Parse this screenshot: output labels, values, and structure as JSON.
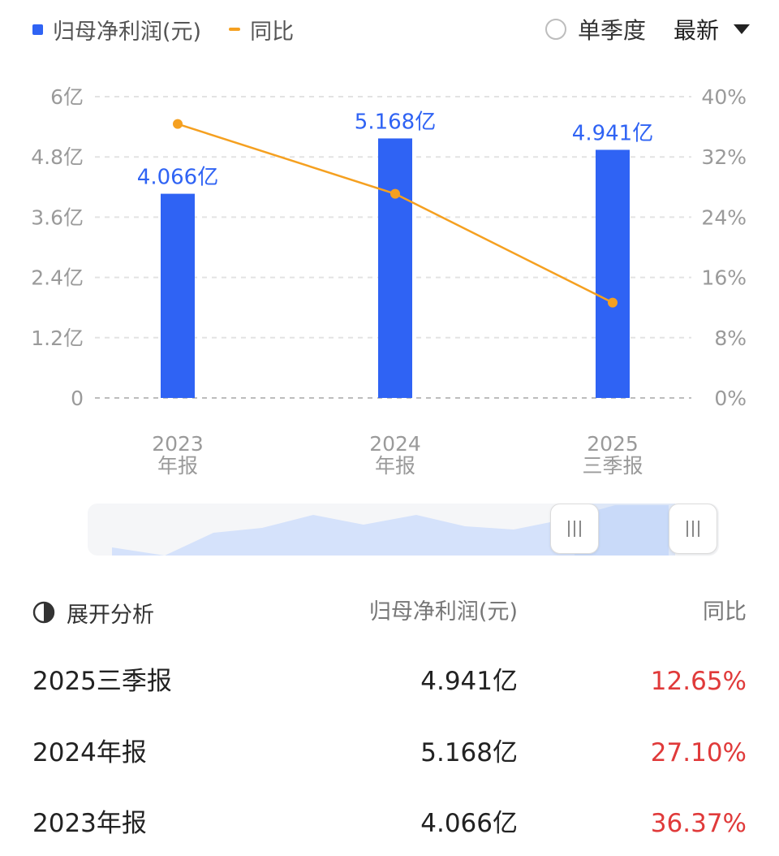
{
  "legend": {
    "bar_label": "归母净利润(元)",
    "line_label": "同比"
  },
  "controls": {
    "single_quarter": "单季度",
    "latest": "最新"
  },
  "colors": {
    "bar": "#2f63f4",
    "line": "#f5a020",
    "negative_or_up": "#e03a3a"
  },
  "chart_data": {
    "type": "bar",
    "categories": [
      "2023\n年报",
      "2024\n年报",
      "2025\n三季报"
    ],
    "series": [
      {
        "name": "归母净利润(元)",
        "type": "bar",
        "axis": "left",
        "values": [
          4.066,
          5.168,
          4.941
        ],
        "labels": [
          "4.066亿",
          "5.168亿",
          "4.941亿"
        ]
      },
      {
        "name": "同比",
        "type": "line",
        "axis": "right",
        "values": [
          36.37,
          27.1,
          12.65
        ]
      }
    ],
    "left_axis": {
      "ylim": [
        0,
        6
      ],
      "ticks": [
        0,
        1.2,
        2.4,
        3.6,
        4.8,
        6
      ],
      "tick_labels": [
        "0",
        "1.2亿",
        "2.4亿",
        "3.6亿",
        "4.8亿",
        "6亿"
      ]
    },
    "right_axis": {
      "ylim": [
        0,
        40
      ],
      "ticks": [
        0,
        8,
        16,
        24,
        32,
        40
      ],
      "tick_labels": [
        "0%",
        "8%",
        "16%",
        "24%",
        "32%",
        "40%"
      ]
    },
    "grid": true,
    "legend_position": "top-left"
  },
  "table": {
    "header": {
      "expand": "展开分析",
      "col_value": "归母净利润(元)",
      "col_yoy": "同比"
    },
    "rows": [
      {
        "period": "2025三季报",
        "value": "4.941亿",
        "yoy": "12.65%"
      },
      {
        "period": "2024年报",
        "value": "5.168亿",
        "yoy": "27.10%"
      },
      {
        "period": "2023年报",
        "value": "4.066亿",
        "yoy": "36.37%"
      }
    ]
  }
}
